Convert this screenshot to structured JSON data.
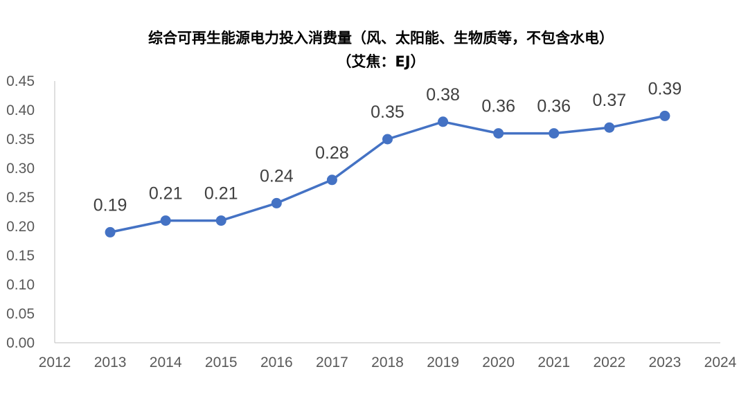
{
  "chart_data": {
    "type": "line",
    "title": "综合可再生能源电力投入消费量（风、太阳能、生物质等，不包含水电）",
    "subtitle": "（艾焦：EJ）",
    "xlabel": "",
    "ylabel": "",
    "x": [
      2013,
      2014,
      2015,
      2016,
      2017,
      2018,
      2019,
      2020,
      2021,
      2022,
      2023
    ],
    "values": [
      0.19,
      0.21,
      0.21,
      0.24,
      0.28,
      0.35,
      0.38,
      0.36,
      0.36,
      0.37,
      0.39
    ],
    "data_labels": [
      "0.19",
      "0.21",
      "0.21",
      "0.24",
      "0.28",
      "0.35",
      "0.38",
      "0.36",
      "0.36",
      "0.37",
      "0.39"
    ],
    "xlim": [
      2012,
      2024
    ],
    "ylim": [
      0,
      0.45
    ],
    "x_ticks": [
      "2012",
      "2013",
      "2014",
      "2015",
      "2016",
      "2017",
      "2018",
      "2019",
      "2020",
      "2021",
      "2022",
      "2023",
      "2024"
    ],
    "y_ticks": [
      "0.00",
      "0.05",
      "0.10",
      "0.15",
      "0.20",
      "0.25",
      "0.30",
      "0.35",
      "0.40",
      "0.45"
    ],
    "grid": false,
    "legend": "none",
    "line_color": "#4472C4",
    "axis_color": "#BFBFBF"
  }
}
